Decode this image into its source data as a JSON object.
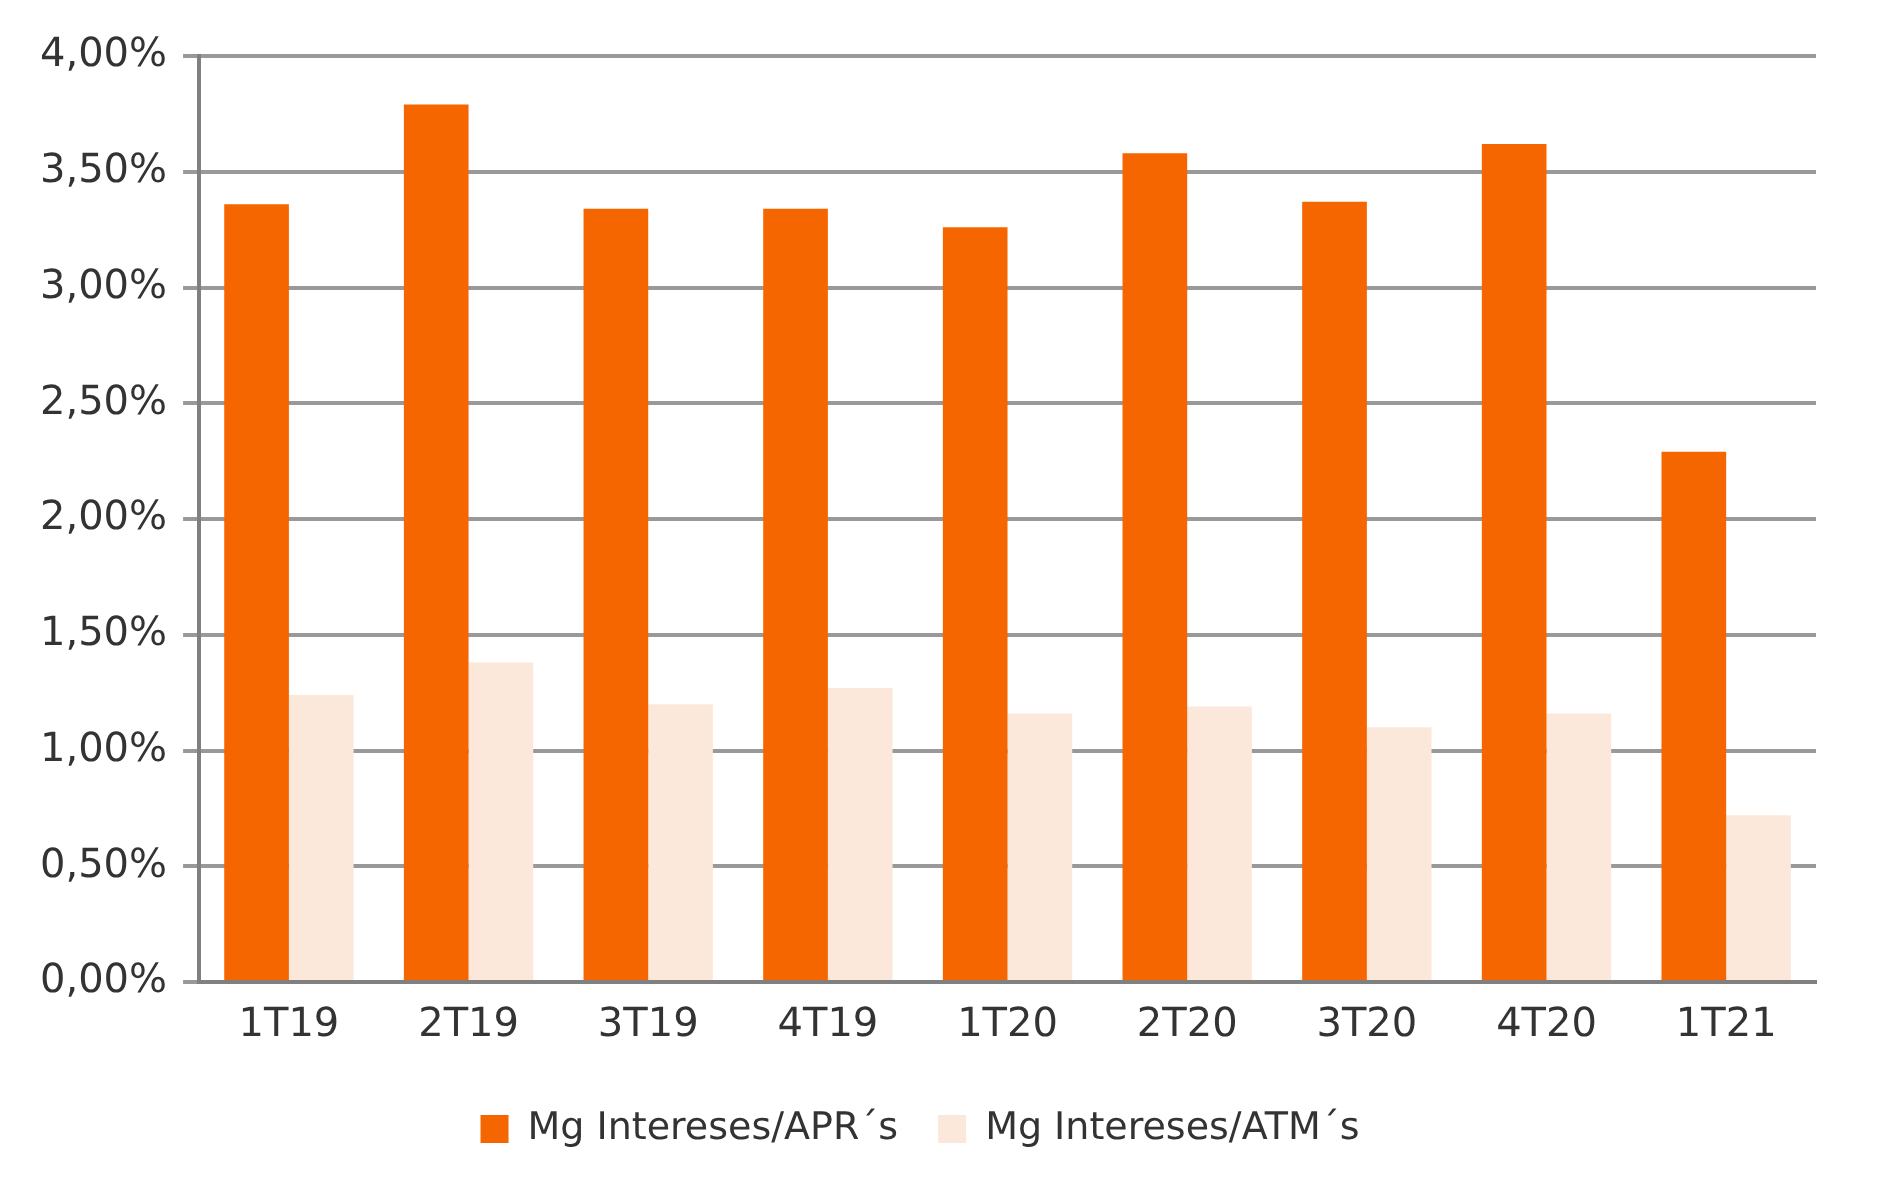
{
  "chart_data": {
    "type": "bar",
    "categories": [
      "1T19",
      "2T19",
      "3T19",
      "4T19",
      "1T20",
      "2T20",
      "3T20",
      "4T20",
      "1T21"
    ],
    "series": [
      {
        "name": "Mg Intereses/APR´s",
        "color": "#f56600",
        "values": [
          3.36,
          3.79,
          3.34,
          3.34,
          3.26,
          3.58,
          3.37,
          3.62,
          2.29
        ]
      },
      {
        "name": "Mg Intereses/ATM´s",
        "color": "#fce8da",
        "values": [
          1.24,
          1.38,
          1.2,
          1.27,
          1.16,
          1.19,
          1.1,
          1.16,
          0.72
        ]
      }
    ],
    "ylim": [
      0,
      4
    ],
    "yticks": [
      {
        "value": 0,
        "label": "0,00%"
      },
      {
        "value": 0.5,
        "label": "0,50%"
      },
      {
        "value": 1,
        "label": "1,00%"
      },
      {
        "value": 1.5,
        "label": "1,50%"
      },
      {
        "value": 2,
        "label": "2,00%"
      },
      {
        "value": 2.5,
        "label": "2,50%"
      },
      {
        "value": 3,
        "label": "3,00%"
      },
      {
        "value": 3.5,
        "label": "3,50%"
      },
      {
        "value": 4,
        "label": "4,00%"
      }
    ],
    "grid": "y",
    "legend": "bottom"
  }
}
